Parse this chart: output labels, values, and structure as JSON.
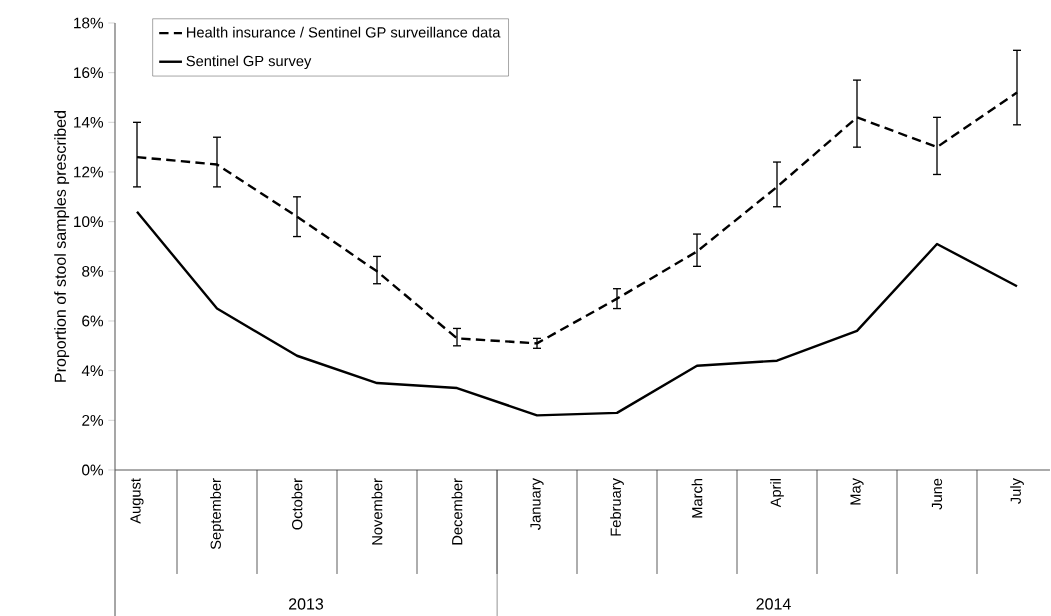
{
  "chart_data": {
    "type": "line",
    "ylabel": "Proportion of stool samples prescribed",
    "categories": [
      "August",
      "September",
      "October",
      "November",
      "December",
      "January",
      "February",
      "March",
      "April",
      "May",
      "June",
      "July"
    ],
    "series": [
      {
        "name": "Health insurance / Sentinel GP surveillance data",
        "color": "#000000",
        "line_style": "dashed",
        "values": [
          12.6,
          12.3,
          10.2,
          8.0,
          5.3,
          5.1,
          6.9,
          8.8,
          11.4,
          14.2,
          13.0,
          15.2
        ],
        "errors": [
          [
            11.4,
            14.0
          ],
          [
            11.4,
            13.4
          ],
          [
            9.4,
            11.0
          ],
          [
            7.5,
            8.6
          ],
          [
            5.0,
            5.7
          ],
          [
            4.9,
            5.3
          ],
          [
            6.5,
            7.3
          ],
          [
            8.2,
            9.5
          ],
          [
            10.6,
            12.4
          ],
          [
            13.0,
            15.7
          ],
          [
            11.9,
            14.2
          ],
          [
            13.9,
            16.9
          ]
        ]
      },
      {
        "name": "Sentinel GP survey",
        "color": "#000000",
        "line_style": "solid",
        "values": [
          10.4,
          6.5,
          4.6,
          3.5,
          3.3,
          2.2,
          2.3,
          4.2,
          4.4,
          5.6,
          9.1,
          7.4
        ]
      }
    ],
    "ylim": [
      0,
      18
    ],
    "yticks": [
      {
        "value": 0,
        "label": "0%"
      },
      {
        "value": 2,
        "label": "2%"
      },
      {
        "value": 4,
        "label": "4%"
      },
      {
        "value": 6,
        "label": "6%"
      },
      {
        "value": 8,
        "label": "8%"
      },
      {
        "value": 10,
        "label": "10%"
      },
      {
        "value": 12,
        "label": "12%"
      },
      {
        "value": 14,
        "label": "14%"
      },
      {
        "value": 16,
        "label": "16%"
      },
      {
        "value": 18,
        "label": "18%"
      }
    ],
    "annotations": [
      "2013",
      "2014"
    ],
    "legend": "top left",
    "grid": false,
    "marker": "none"
  }
}
